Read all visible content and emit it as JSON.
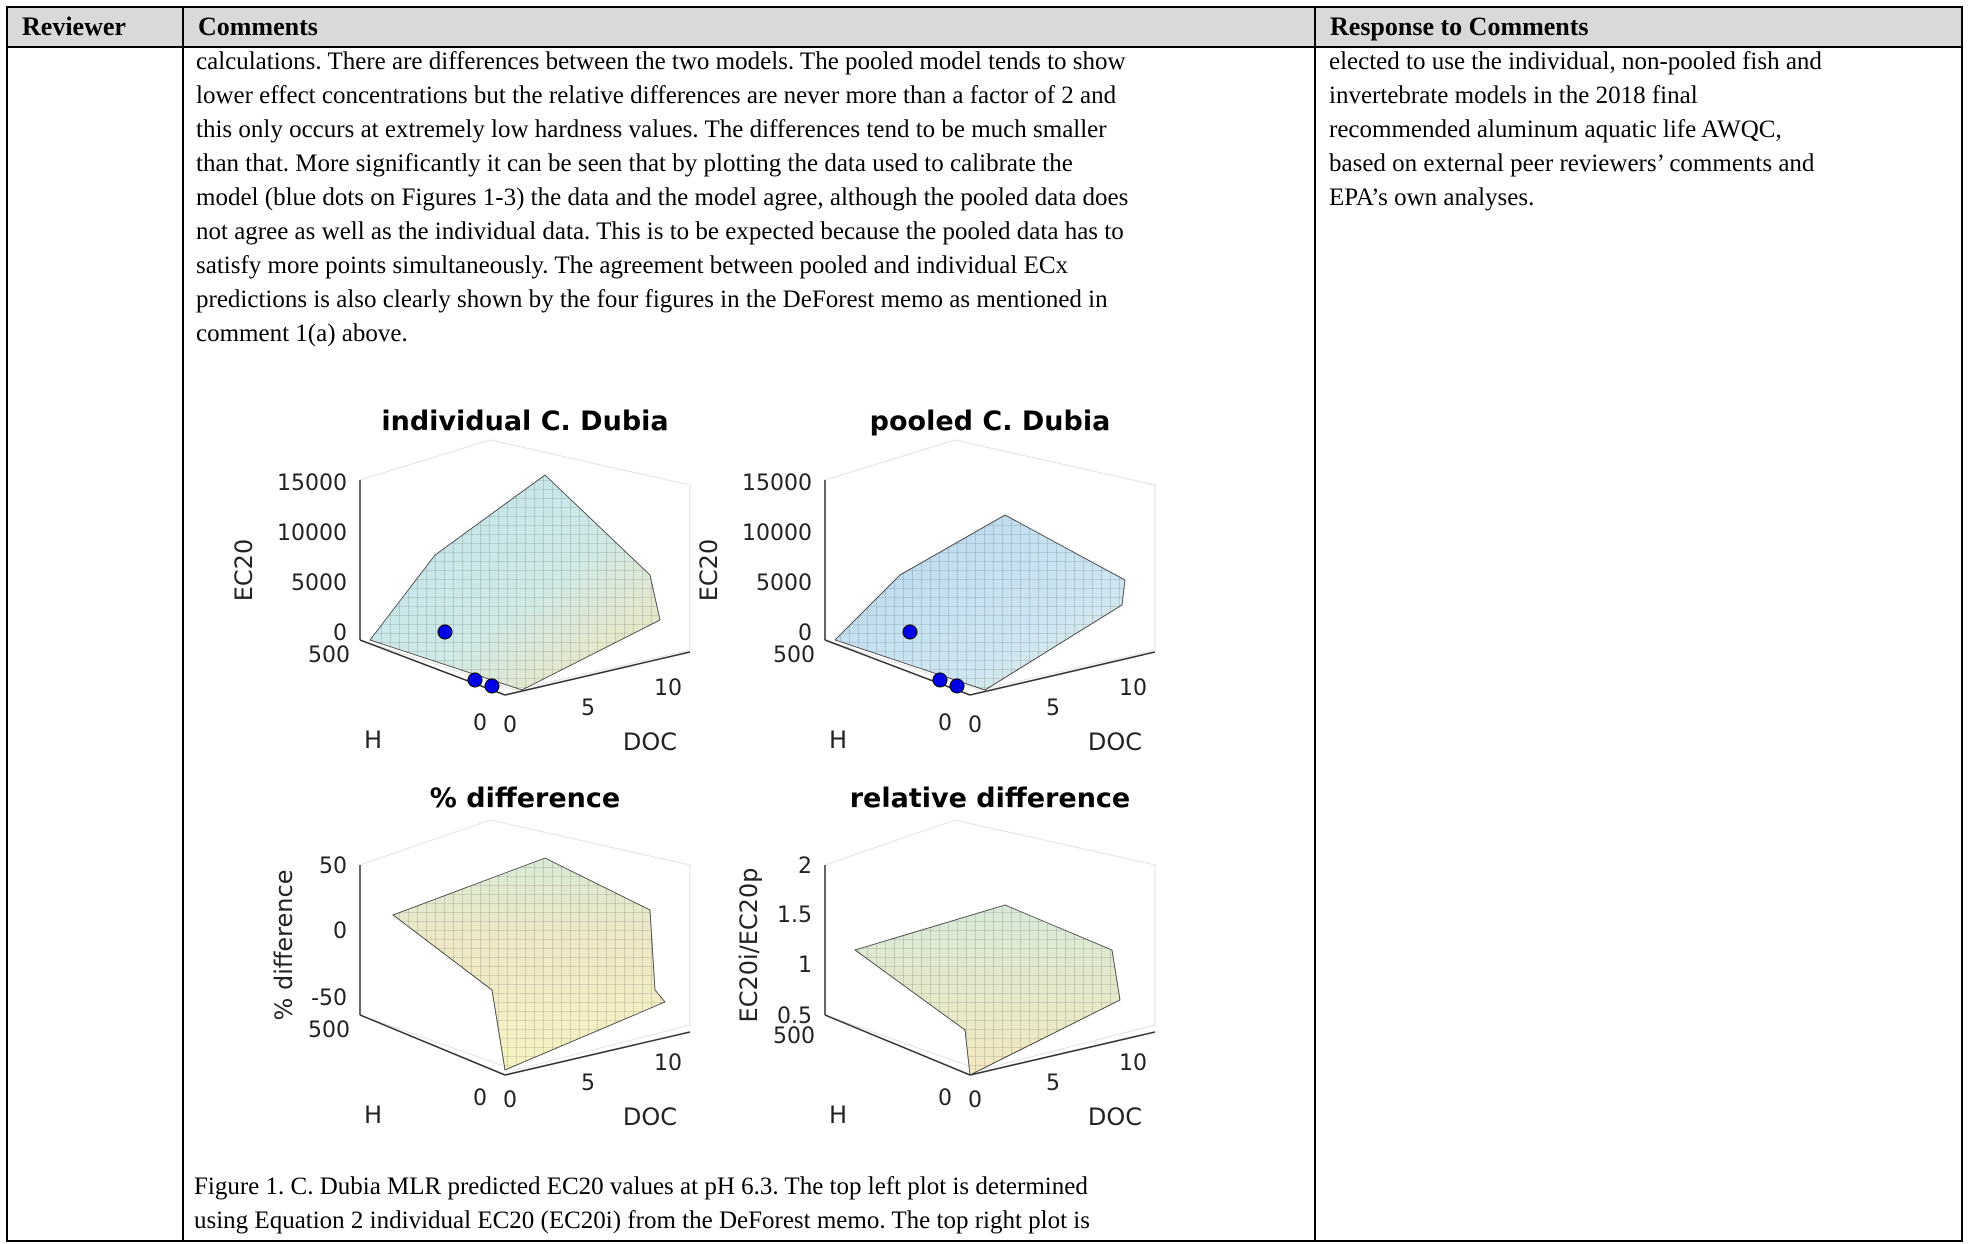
{
  "table": {
    "headers": {
      "reviewer": "Reviewer",
      "comments": "Comments",
      "response": "Response to Comments"
    }
  },
  "comment_lines": [
    "calculations.  There are differences between the two models. The pooled model tends to show",
    "lower effect concentrations but the relative differences are never more than a factor of 2 and",
    "this only occurs at extremely low hardness values.  The differences tend to be much smaller",
    "than that.  More significantly it can be seen that by plotting the data used to calibrate the",
    "model (blue dots on Figures 1-3) the data and the model agree, although the pooled data does",
    "not agree as well as the individual data. This is to be expected because the pooled data has to",
    "satisfy more points simultaneously.  The agreement between pooled and individual ECx",
    "predictions is also clearly shown by the four figures in the DeForest memo as mentioned in",
    "comment 1(a) above."
  ],
  "response_lines": [
    "elected to use the individual, non-pooled fish and",
    "invertebrate models in the 2018 final",
    "recommended aluminum aquatic life AWQC,",
    "based on external peer reviewers’ comments and",
    "EPA’s own analyses."
  ],
  "caption_lines": [
    "Figure 1. C. Dubia MLR predicted EC20 values at pH 6.3.  The top left plot is determined",
    "using Equation 2 individual EC20 (EC20i) from the DeForest memo.  The top right plot is"
  ],
  "chart_data": [
    {
      "type": "surface",
      "title": "individual C. Dubia",
      "xlabel": "H",
      "ylabel": "DOC",
      "zlabel": "EC20",
      "z_ticks": [
        "0",
        "5000",
        "10000",
        "15000"
      ],
      "h_ticks": [
        "500",
        "0"
      ],
      "doc_ticks": [
        "0",
        "5",
        "10"
      ],
      "points": 3
    },
    {
      "type": "surface",
      "title": "pooled C. Dubia",
      "xlabel": "H",
      "ylabel": "DOC",
      "zlabel": "EC20",
      "z_ticks": [
        "0",
        "5000",
        "10000",
        "15000"
      ],
      "h_ticks": [
        "500",
        "0"
      ],
      "doc_ticks": [
        "0",
        "5",
        "10"
      ],
      "points": 3
    },
    {
      "type": "surface",
      "title": "% difference",
      "xlabel": "H",
      "ylabel": "DOC",
      "zlabel": "% difference",
      "z_ticks": [
        "-50",
        "0",
        "50"
      ],
      "h_ticks": [
        "500",
        "0"
      ],
      "doc_ticks": [
        "0",
        "5",
        "10"
      ]
    },
    {
      "type": "surface",
      "title": "relative difference",
      "xlabel": "H",
      "ylabel": "DOC",
      "zlabel": "EC20i/EC20p",
      "z_ticks": [
        "0.5",
        "1",
        "1.5",
        "2"
      ],
      "h_ticks": [
        "500",
        "0"
      ],
      "doc_ticks": [
        "0",
        "5",
        "10"
      ]
    }
  ]
}
